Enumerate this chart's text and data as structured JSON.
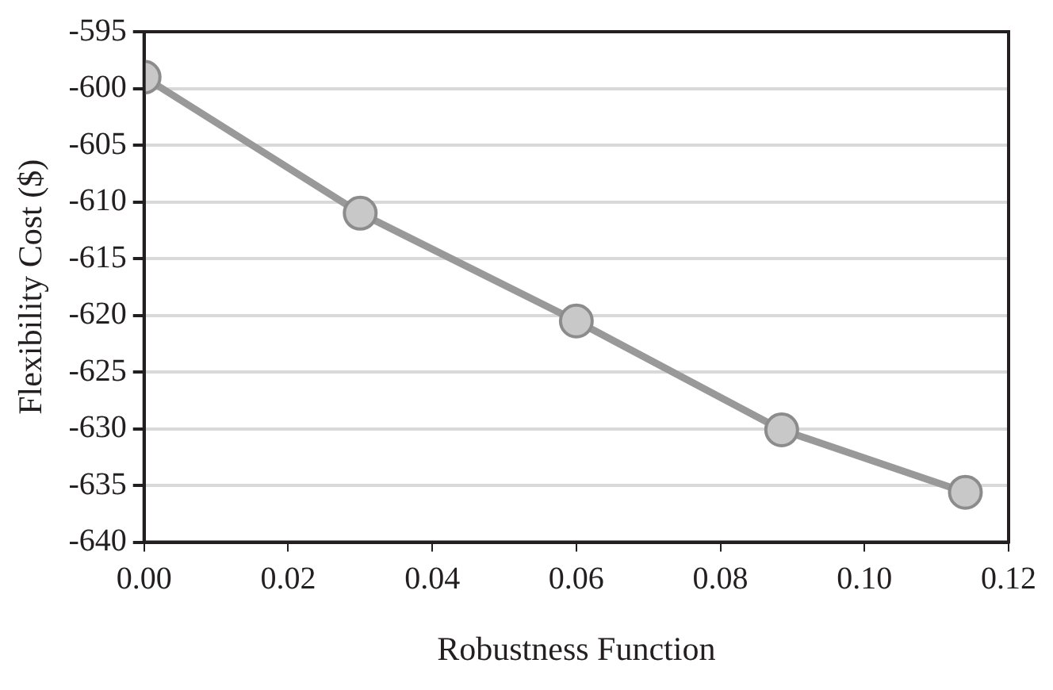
{
  "chart_data": {
    "type": "line",
    "xlabel": "Robustness Function",
    "ylabel": "Flexibility Cost ($)",
    "series": [
      {
        "color": "#999999",
        "x": [
          0,
          0.03,
          0.06,
          0.0885,
          0.114
        ],
        "values": [
          -599.0,
          -611.0,
          -620.5,
          -630.1,
          -635.6
        ]
      }
    ],
    "xlim": [
      0,
      0.12
    ],
    "xticks": [
      {
        "value": 0,
        "label": "0.00"
      },
      {
        "value": 0.02,
        "label": "0.02"
      },
      {
        "value": 0.04,
        "label": "0.04"
      },
      {
        "value": 0.06,
        "label": "0.06"
      },
      {
        "value": 0.08,
        "label": "0.08"
      },
      {
        "value": 0.1,
        "label": "0.10"
      },
      {
        "value": 0.12,
        "label": "0.12"
      }
    ],
    "ylim": [
      -640,
      -595
    ],
    "yticks": [
      -640,
      -635,
      -630,
      -625,
      -620,
      -615,
      -610,
      -605,
      -600,
      -595
    ],
    "grid": "y",
    "legend": false,
    "marker": "circle",
    "line_style": "solid"
  }
}
